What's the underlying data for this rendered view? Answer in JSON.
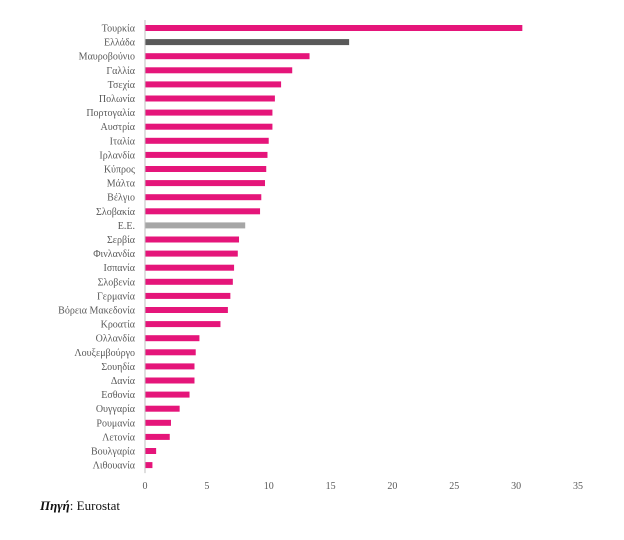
{
  "chart_data": {
    "type": "bar",
    "orientation": "horizontal",
    "categories": [
      "Τουρκία",
      "Ελλάδα",
      "Μαυροβούνιο",
      "Γαλλία",
      "Τσεχία",
      "Πολωνία",
      "Πορτογαλία",
      "Αυστρία",
      "Ιταλία",
      "Ιρλανδία",
      "Κύπρος",
      "Μάλτα",
      "Βέλγιο",
      "Σλοβακία",
      "Ε.Ε.",
      "Σερβία",
      "Φινλανδία",
      "Ισπανία",
      "Σλοβενία",
      "Γερμανία",
      "Βόρεια Μακεδονία",
      "Κροατία",
      "Ολλανδία",
      "Λουξεμβούργο",
      "Σουηδία",
      "Δανία",
      "Εσθονία",
      "Ουγγαρία",
      "Ρουμανία",
      "Λετονία",
      "Βουλγαρία",
      "Λιθουανία"
    ],
    "values": [
      30.5,
      16.5,
      13.3,
      11.9,
      11.0,
      10.5,
      10.3,
      10.3,
      10.0,
      9.9,
      9.8,
      9.7,
      9.4,
      9.3,
      8.1,
      7.6,
      7.5,
      7.2,
      7.1,
      6.9,
      6.7,
      6.1,
      4.4,
      4.1,
      4.0,
      4.0,
      3.6,
      2.8,
      2.1,
      2.0,
      0.9,
      0.6
    ],
    "bar_colors": [
      "#e5157a",
      "#595959",
      "#e5157a",
      "#e5157a",
      "#e5157a",
      "#e5157a",
      "#e5157a",
      "#e5157a",
      "#e5157a",
      "#e5157a",
      "#e5157a",
      "#e5157a",
      "#e5157a",
      "#e5157a",
      "#a6a6a6",
      "#e5157a",
      "#e5157a",
      "#e5157a",
      "#e5157a",
      "#e5157a",
      "#e5157a",
      "#e5157a",
      "#e5157a",
      "#e5157a",
      "#e5157a",
      "#e5157a",
      "#e5157a",
      "#e5157a",
      "#e5157a",
      "#e5157a",
      "#e5157a",
      "#e5157a"
    ],
    "xlim": [
      0,
      35
    ],
    "xticks": [
      0,
      5,
      10,
      15,
      20,
      25,
      30,
      35
    ],
    "grid": false,
    "title": "",
    "xlabel": "",
    "ylabel": ""
  },
  "source": {
    "key": "Πηγή",
    "value": "Eurostat"
  }
}
